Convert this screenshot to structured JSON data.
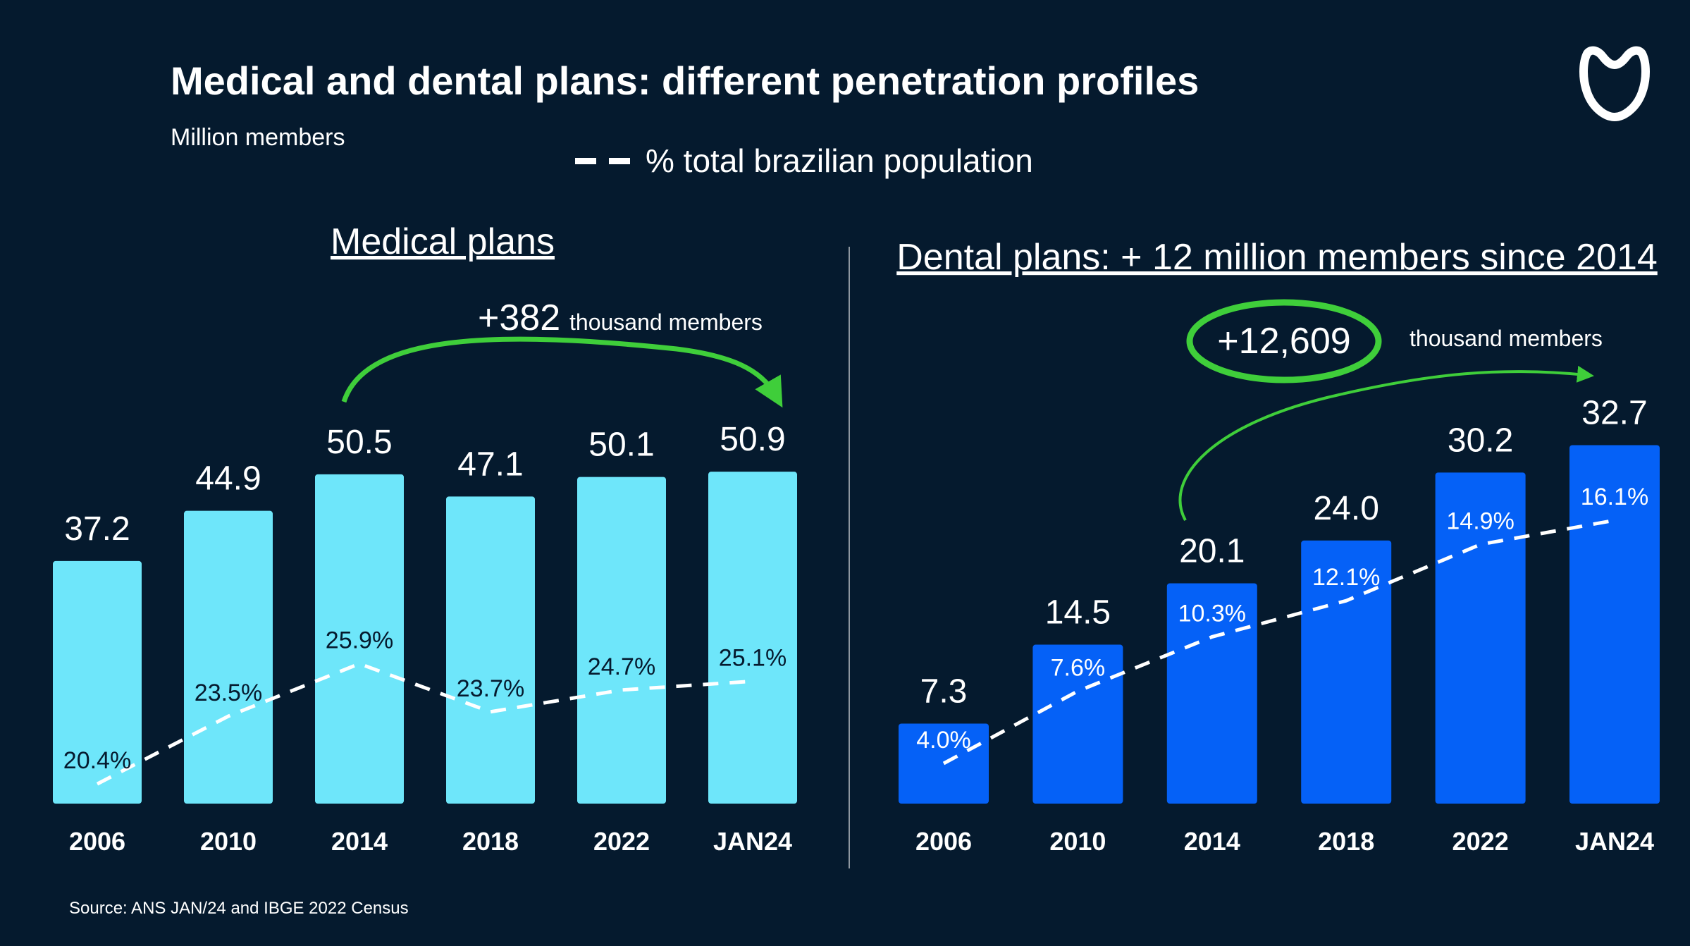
{
  "title": "Medical and dental plans: different penetration profiles",
  "subtitle": "Million members",
  "legend_label": "% total brazilian population",
  "source": "Source: ANS JAN/24 and IBGE 2022 Census",
  "colors": {
    "background": "#051a2e",
    "medical_bar": "#6ee6fa",
    "dental_bar": "#0561f7",
    "arrow_green": "#3fce3a",
    "text": "#ffffff",
    "medical_pct_text": "#051a2e"
  },
  "chart_data": [
    {
      "type": "bar",
      "title": "Medical plans",
      "categories": [
        "2006",
        "2010",
        "2014",
        "2018",
        "2022",
        "JAN24"
      ],
      "values": [
        37.2,
        44.9,
        50.5,
        47.1,
        50.1,
        50.9
      ],
      "value_labels": [
        "37.2",
        "44.9",
        "50.5",
        "47.1",
        "50.1",
        "50.9"
      ],
      "unit": "Million members",
      "line": {
        "name": "% total brazilian population",
        "values": [
          20.4,
          23.5,
          25.9,
          23.7,
          24.7,
          25.1
        ],
        "labels": [
          "20.4%",
          "23.5%",
          "25.9%",
          "23.7%",
          "24.7%",
          "25.1%"
        ],
        "style": "dashed"
      },
      "annotation": {
        "value": "+382",
        "text": "thousand members",
        "from": "2014",
        "to": "JAN24"
      },
      "grid": false
    },
    {
      "type": "bar",
      "title": "Dental plans: + 12 million members since 2014",
      "categories": [
        "2006",
        "2010",
        "2014",
        "2018",
        "2022",
        "JAN24"
      ],
      "values": [
        7.3,
        14.5,
        20.1,
        24.0,
        30.2,
        32.7
      ],
      "value_labels": [
        "7.3",
        "14.5",
        "20.1",
        "24.0",
        "30.2",
        "32.7"
      ],
      "unit": "Million members",
      "line": {
        "name": "% total brazilian population",
        "values": [
          4.0,
          7.6,
          10.3,
          12.1,
          14.9,
          16.1
        ],
        "labels": [
          "4.0%",
          "7.6%",
          "10.3%",
          "12.1%",
          "14.9%",
          "16.1%"
        ],
        "style": "dashed"
      },
      "annotation": {
        "value": "+12,609",
        "text": "thousand members",
        "from": "2014",
        "to": "JAN24",
        "highlighted": true
      },
      "grid": false
    }
  ]
}
